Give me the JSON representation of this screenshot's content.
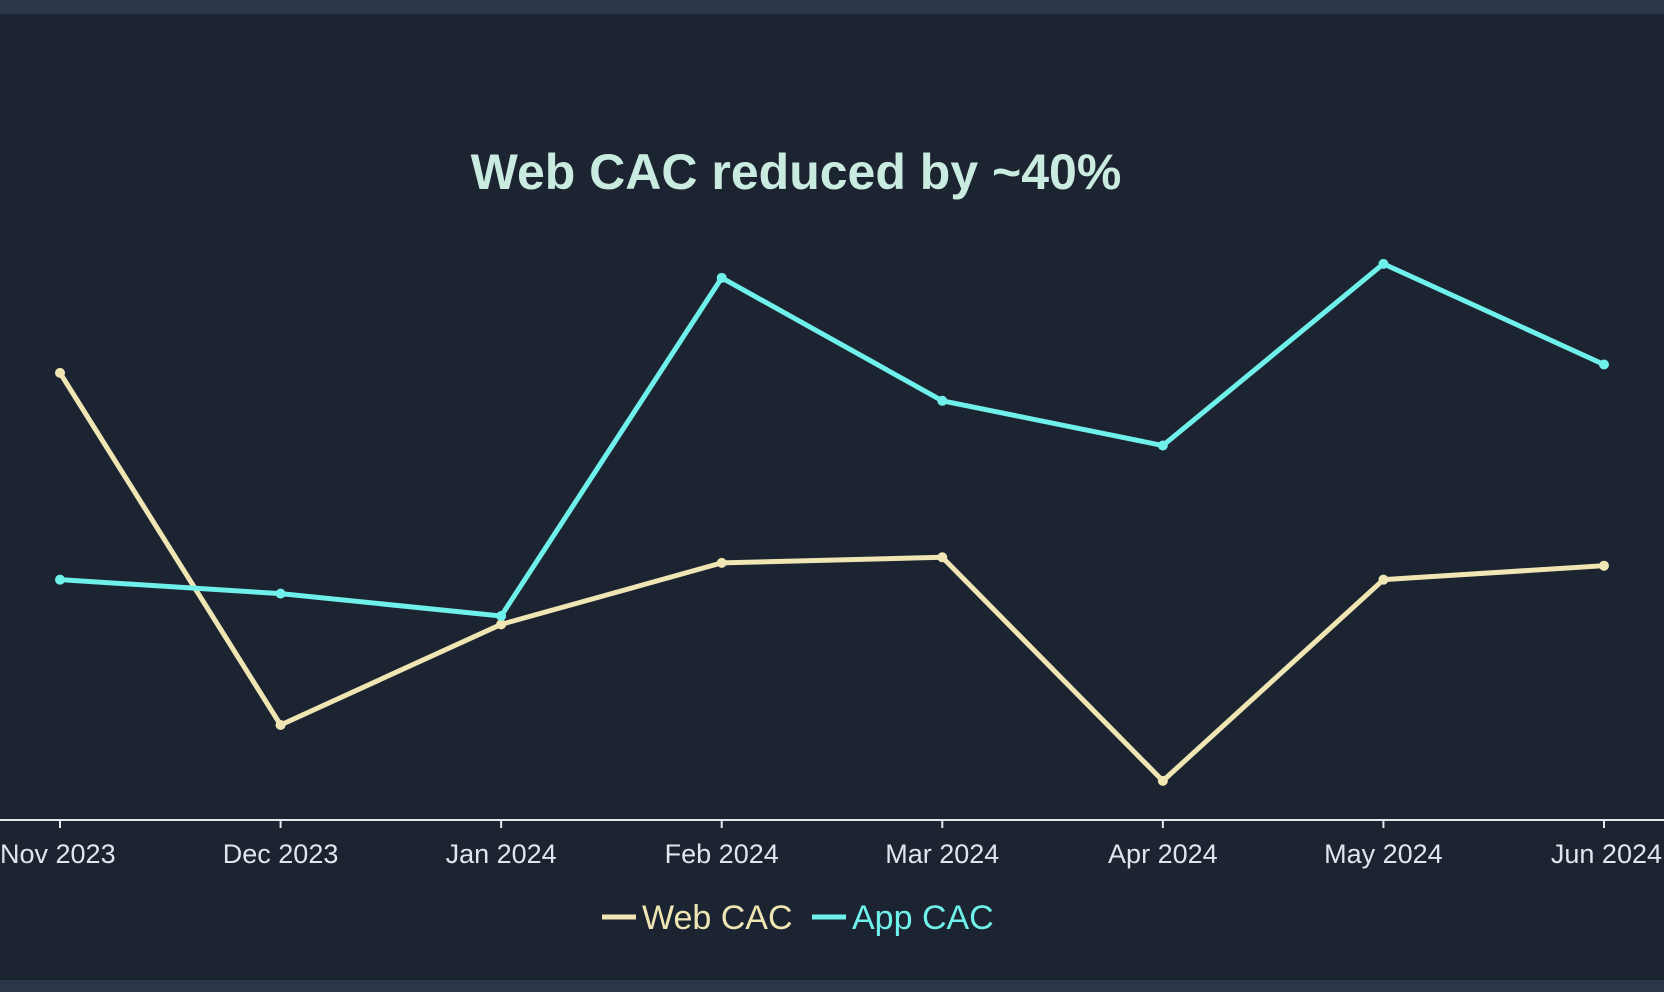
{
  "chart_data": {
    "type": "line",
    "title": "Web CAC reduced by ~40%",
    "xlabel": "",
    "ylabel": "",
    "categories": [
      "Nov 2023",
      "Dec 2023",
      "Jan 2024",
      "Feb 2024",
      "Mar 2024",
      "Apr 2024",
      "May 2024",
      "Jun 2024"
    ],
    "series": [
      {
        "name": "Web CAC",
        "color": "#efe6b4",
        "values": [
          100,
          37,
          55,
          66,
          67,
          27,
          63,
          65.5
        ]
      },
      {
        "name": "App CAC",
        "color": "#6ff0ea",
        "values": [
          63,
          60.5,
          56.5,
          117,
          95,
          87,
          119.5,
          101.5
        ]
      }
    ],
    "ylim": [
      20,
      132
    ],
    "y_axis_visible": false,
    "grid": false,
    "legend_position": "bottom-center"
  }
}
